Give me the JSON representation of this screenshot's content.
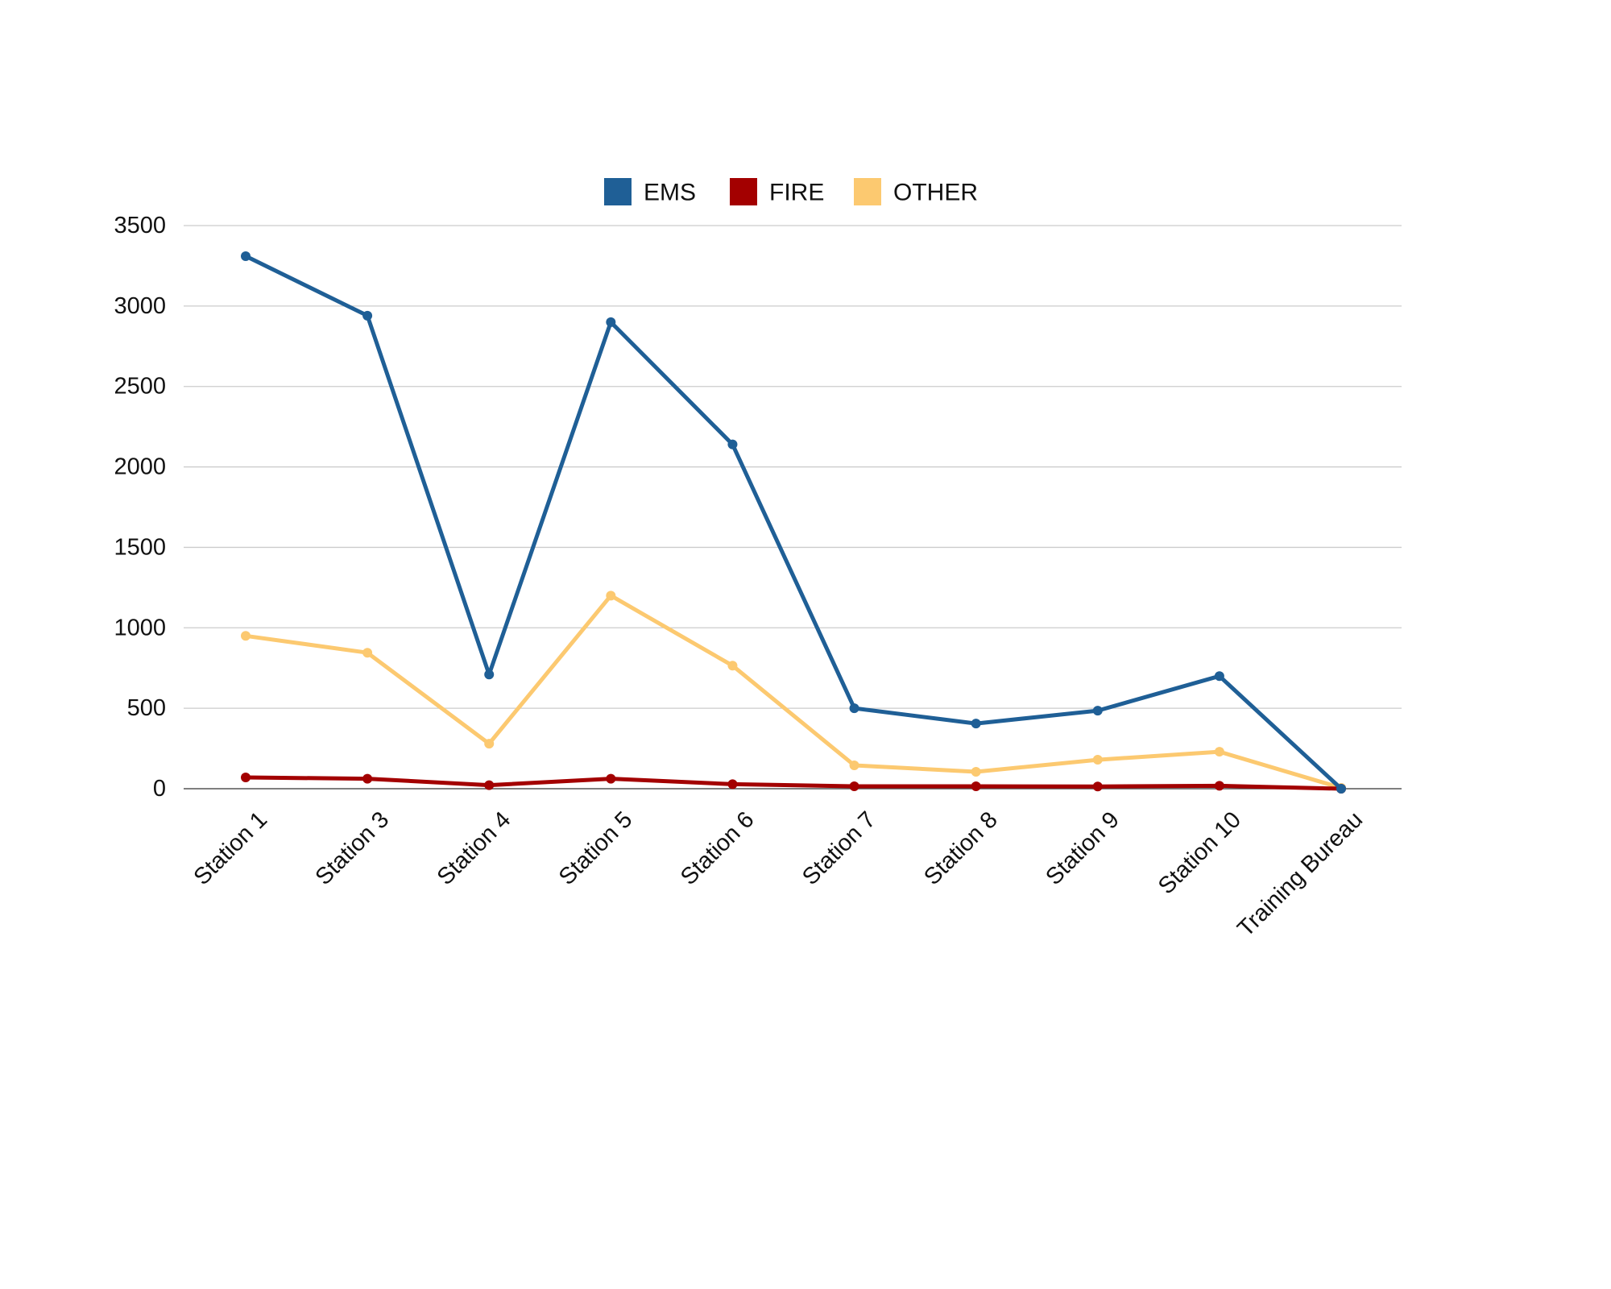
{
  "chart_data": {
    "type": "line",
    "title": "",
    "xlabel": "",
    "ylabel": "",
    "categories": [
      "Station 1",
      "Station 3",
      "Station 4",
      "Station 5",
      "Station 6",
      "Station 7",
      "Station 8",
      "Station 9",
      "Station 10",
      "Training Bureau"
    ],
    "ylim": [
      0,
      3500
    ],
    "yticks": [
      0,
      500,
      1000,
      1500,
      2000,
      2500,
      3000,
      3500
    ],
    "grid": true,
    "legend_position": "top-center",
    "series": [
      {
        "name": "EMS",
        "color": "#1f5f96",
        "values": [
          3310,
          2940,
          710,
          2900,
          2140,
          500,
          405,
          485,
          700,
          0
        ]
      },
      {
        "name": "FIRE",
        "color": "#a30000",
        "values": [
          70,
          62,
          22,
          62,
          28,
          15,
          15,
          14,
          18,
          0
        ]
      },
      {
        "name": "OTHER",
        "color": "#fcc970",
        "values": [
          950,
          845,
          280,
          1200,
          765,
          145,
          105,
          180,
          230,
          5
        ]
      }
    ]
  }
}
